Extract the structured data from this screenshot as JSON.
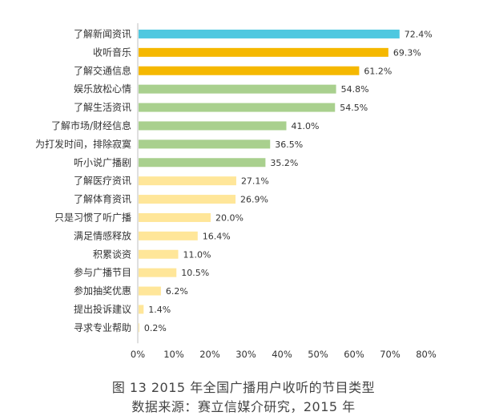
{
  "chart_data": {
    "type": "bar",
    "orientation": "horizontal",
    "categories": [
      "了解新闻资讯",
      "收听音乐",
      "了解交通信息",
      "娱乐放松心情",
      "了解生活资讯",
      "了解市场/财经信息",
      "为打发时间，排除寂寞",
      "听小说广播剧",
      "了解医疗资讯",
      "了解体育资讯",
      "只是习惯了听广播",
      "满足情感释放",
      "积累谈资",
      "参与广播节目",
      "参加抽奖优惠",
      "提出投诉建议",
      "寻求专业帮助"
    ],
    "values": [
      72.4,
      69.3,
      61.2,
      54.8,
      54.5,
      41.0,
      36.5,
      35.2,
      27.1,
      26.9,
      20.0,
      16.4,
      11.0,
      10.5,
      6.2,
      1.4,
      0.2
    ],
    "value_labels": [
      "72.4%",
      "69.3%",
      "61.2%",
      "54.8%",
      "54.5%",
      "41.0%",
      "36.5%",
      "35.2%",
      "27.1%",
      "26.9%",
      "20.0%",
      "16.4%",
      "11.0%",
      "10.5%",
      "6.2%",
      "1.4%",
      "0.2%"
    ],
    "bar_colors": [
      "#4fc8e0",
      "#f4b183",
      "#f4b183",
      "#a9d08e",
      "#a9d08e",
      "#a9d08e",
      "#a9d08e",
      "#a9d08e",
      "#ffe699",
      "#ffe699",
      "#ffe699",
      "#ffe699",
      "#ffe699",
      "#ffe699",
      "#ffe699",
      "#ffe699",
      "#ffe699"
    ],
    "xlim": [
      0,
      80
    ],
    "xticks": [
      "0%",
      "10%",
      "20%",
      "30%",
      "40%",
      "50%",
      "60%",
      "70%",
      "80%"
    ],
    "grid": false
  },
  "caption": {
    "line1": "图 13   2015 年全国广播用户收听的节目类型",
    "line2": "数据来源：赛立信媒介研究，2015 年"
  }
}
